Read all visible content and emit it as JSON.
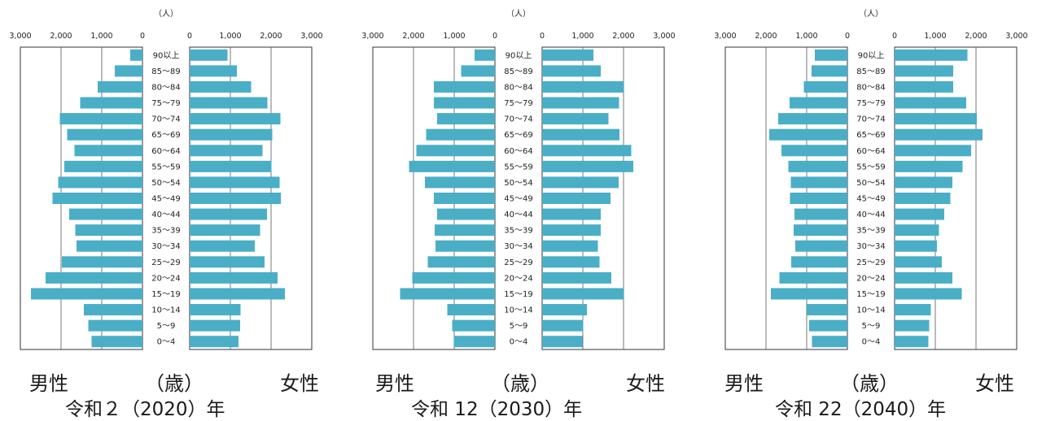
{
  "labels": {
    "unit": "（人）",
    "male": "男性",
    "female": "女性",
    "age": "（歳）"
  },
  "axis_ticks": [
    "0",
    "1,000",
    "2,000",
    "3,000"
  ],
  "colors": {
    "bar": "#4aaec7",
    "grid": "#555555",
    "frame": "#333333"
  },
  "chart_data": [
    {
      "type": "bar",
      "title": "令和２（2020）年",
      "categories": [
        "90以上",
        "85～89",
        "80～84",
        "75～79",
        "70～74",
        "65～69",
        "60～64",
        "55～59",
        "50～54",
        "45～49",
        "40～44",
        "35～39",
        "30～34",
        "25～29",
        "20～24",
        "15～19",
        "10～14",
        "5～9",
        "0～4"
      ],
      "series": [
        {
          "name": "男性",
          "values": [
            300,
            680,
            1100,
            1530,
            2030,
            1850,
            1670,
            1920,
            2070,
            2210,
            1800,
            1650,
            1620,
            1980,
            2380,
            2740,
            1440,
            1330,
            1250
          ]
        },
        {
          "name": "女性",
          "values": [
            930,
            1160,
            1510,
            1910,
            2230,
            2030,
            1790,
            2010,
            2210,
            2240,
            1900,
            1730,
            1600,
            1840,
            2160,
            2340,
            1250,
            1240,
            1200
          ]
        }
      ],
      "xlim": [
        0,
        3000
      ]
    },
    {
      "type": "bar",
      "title": "令和 12（2030）年",
      "categories": [
        "90以上",
        "85～89",
        "80～84",
        "75～79",
        "70～74",
        "65～69",
        "60～64",
        "55～59",
        "50～54",
        "45～49",
        "40～44",
        "35～39",
        "30～34",
        "25～29",
        "20～24",
        "15～19",
        "10～14",
        "5～9",
        "0～4"
      ],
      "series": [
        {
          "name": "男性",
          "values": [
            500,
            830,
            1500,
            1500,
            1420,
            1690,
            1930,
            2110,
            1720,
            1500,
            1420,
            1480,
            1460,
            1650,
            2030,
            2330,
            1170,
            1050,
            1010
          ]
        },
        {
          "name": "女性",
          "values": [
            1260,
            1440,
            2000,
            1890,
            1630,
            1900,
            2190,
            2240,
            1880,
            1680,
            1440,
            1440,
            1370,
            1410,
            1700,
            2000,
            1100,
            1010,
            990
          ]
        }
      ],
      "xlim": [
        0,
        3000
      ]
    },
    {
      "type": "bar",
      "title": "令和 22（2040）年",
      "categories": [
        "90以上",
        "85～89",
        "80～84",
        "75～79",
        "70～74",
        "65～69",
        "60～64",
        "55～59",
        "50～54",
        "45～49",
        "40～44",
        "35～39",
        "30～34",
        "25～29",
        "20～24",
        "15～19",
        "10～14",
        "5～9",
        "0～4"
      ],
      "series": [
        {
          "name": "男性",
          "values": [
            800,
            880,
            1070,
            1420,
            1700,
            1920,
            1620,
            1450,
            1390,
            1410,
            1300,
            1320,
            1280,
            1380,
            1670,
            1880,
            1000,
            940,
            870
          ]
        },
        {
          "name": "女性",
          "values": [
            1790,
            1440,
            1440,
            1760,
            2020,
            2160,
            1880,
            1670,
            1420,
            1370,
            1220,
            1090,
            1040,
            1160,
            1420,
            1650,
            890,
            850,
            830
          ]
        }
      ],
      "xlim": [
        0,
        3000
      ]
    }
  ]
}
